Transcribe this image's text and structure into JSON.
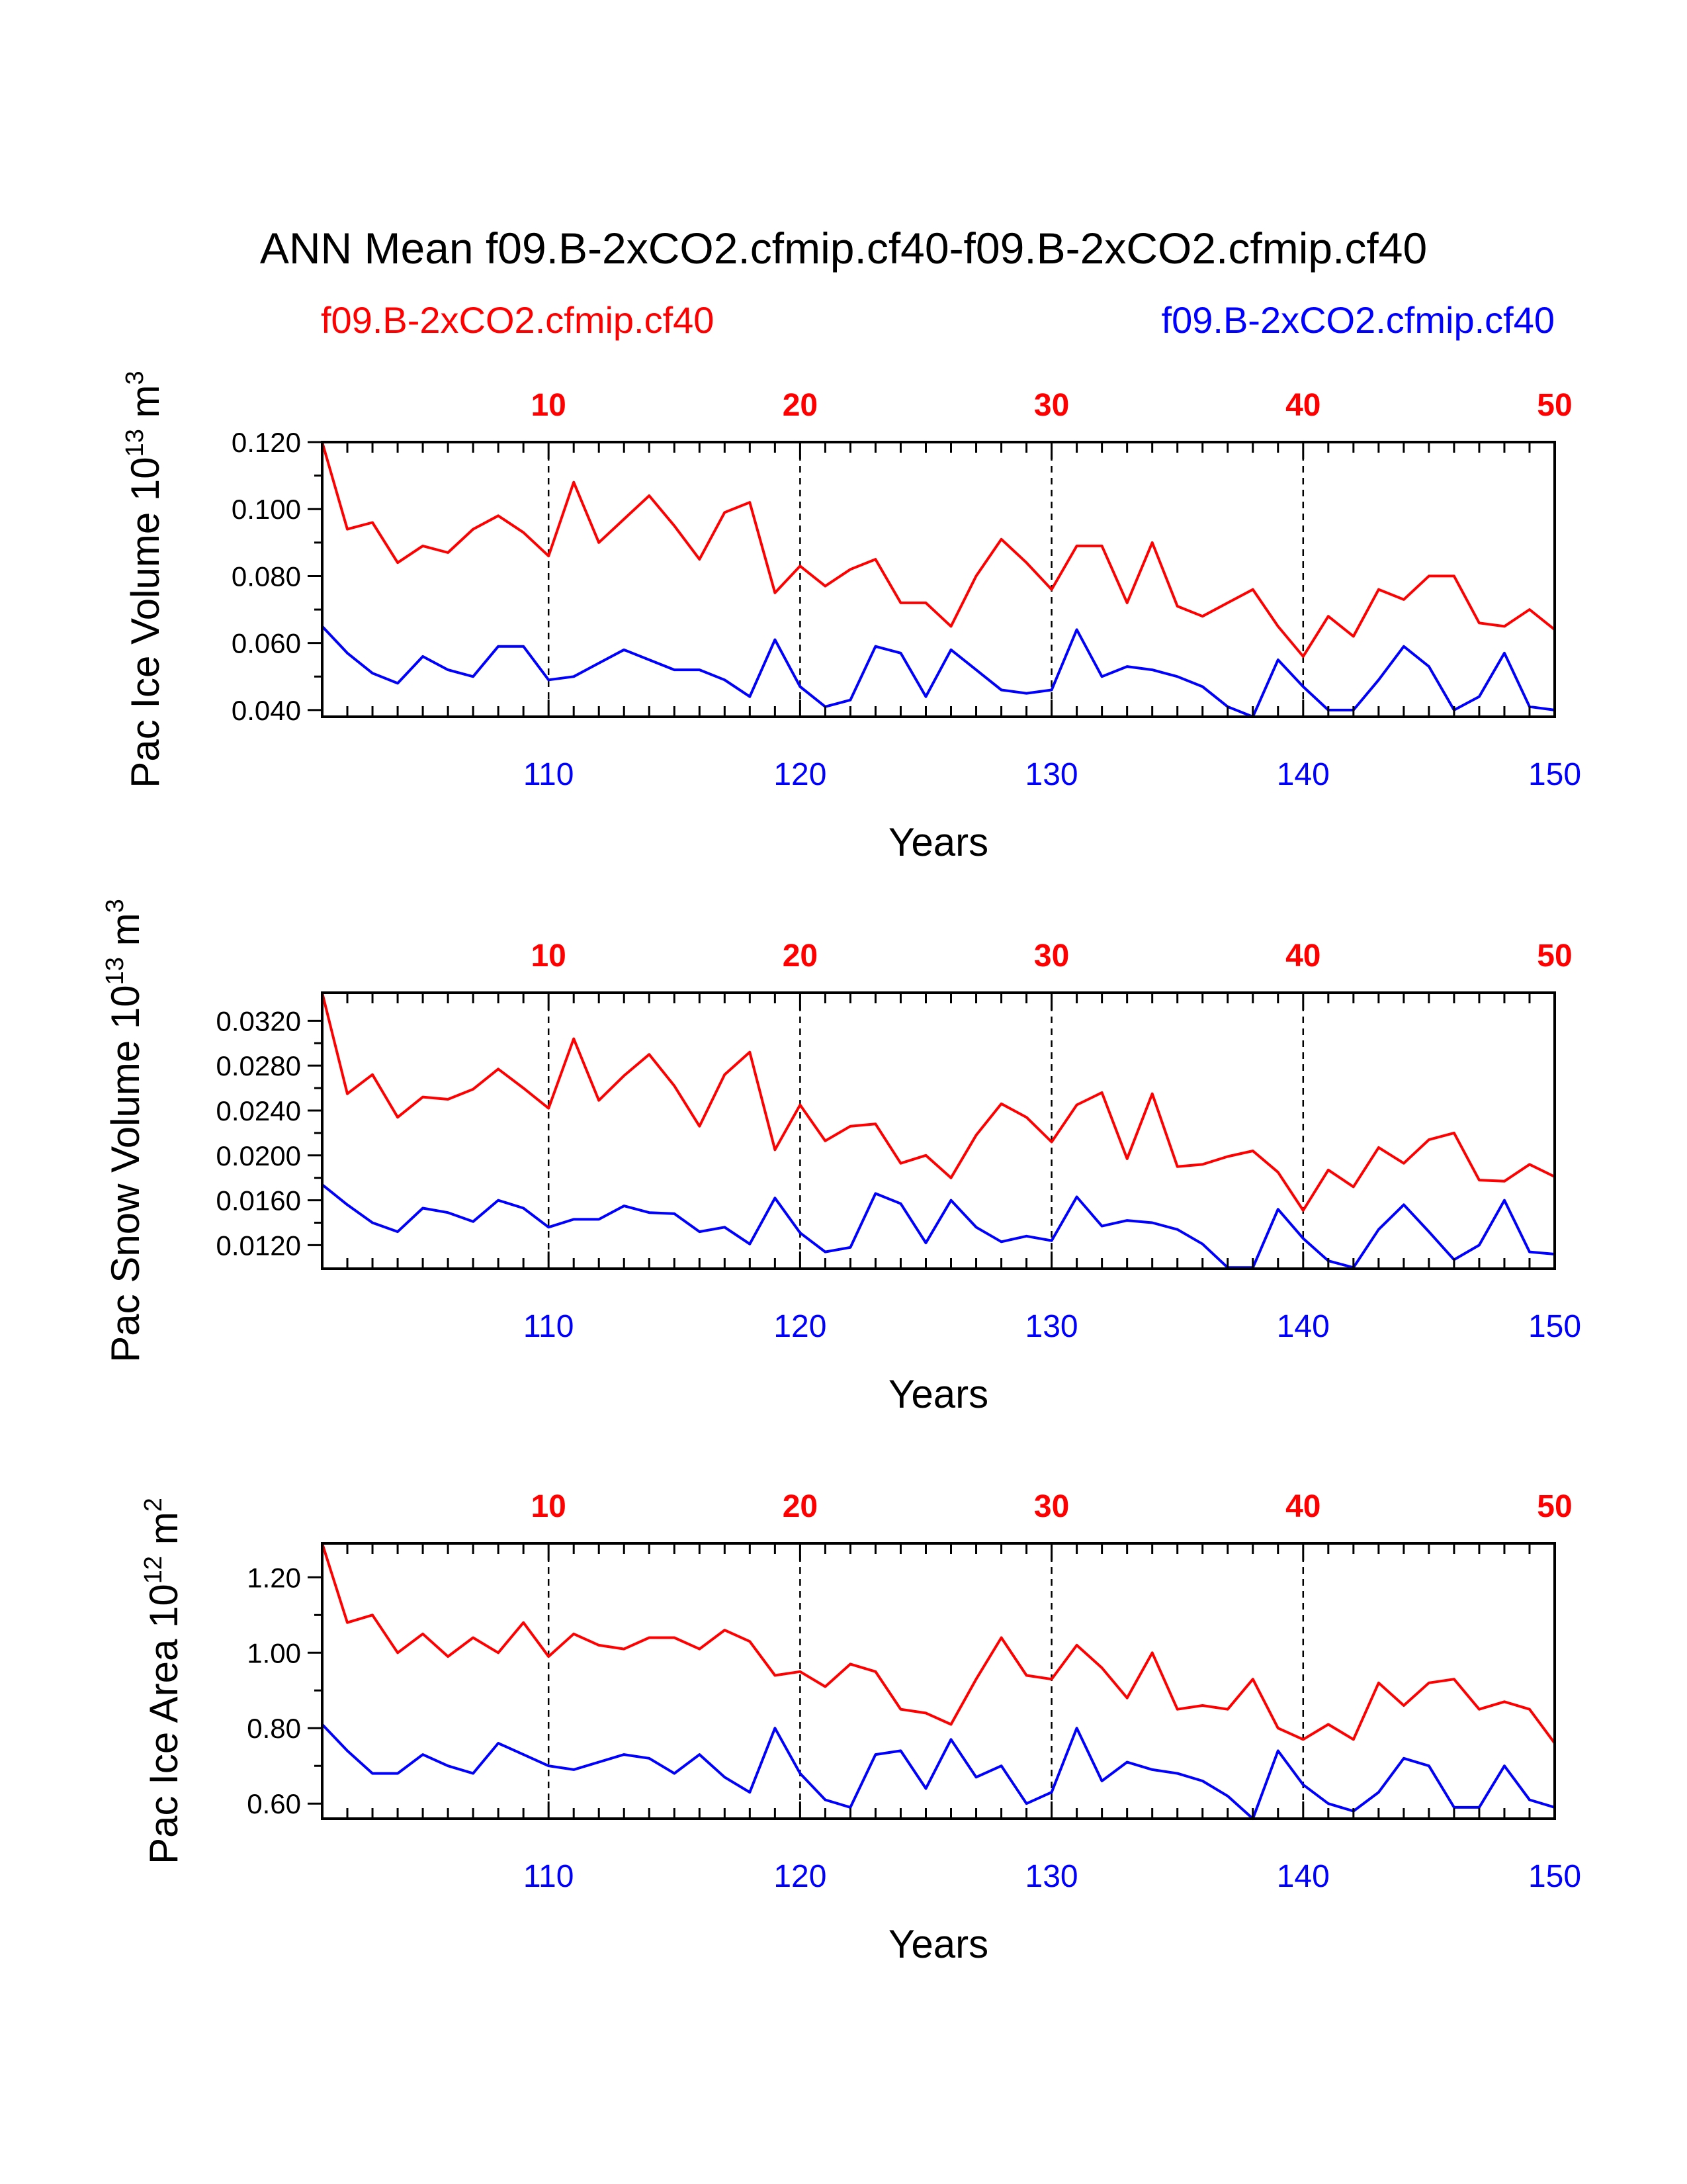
{
  "figure": {
    "title": "ANN Mean f09.B-2xCO2.cfmip.cf40-f09.B-2xCO2.cfmip.cf40",
    "legend": {
      "case1": "f09.B-2xCO2.cfmip.cf40",
      "case2": "f09.B-2xCO2.cfmip.cf40"
    },
    "colors": {
      "case1": "#ff0000",
      "case2": "#0000ff",
      "axis": "#000000"
    }
  },
  "chart_data": [
    {
      "type": "line",
      "ylabel_main": "Pac Ice Volume 10",
      "ylabel_exp": "13",
      "ylabel_unit": " m",
      "ylabel_unit_exp": "3",
      "xlabel": "Years",
      "ylim": [
        0.038,
        0.12
      ],
      "yticks": [
        "0.040",
        "0.060",
        "0.080",
        "0.100",
        "0.120"
      ],
      "ytick_values": [
        0.04,
        0.06,
        0.08,
        0.1,
        0.12
      ],
      "top_ticks": [
        "10",
        "20",
        "30",
        "40",
        "50"
      ],
      "bottom_ticks": [
        "110",
        "120",
        "130",
        "140",
        "150"
      ],
      "series": [
        {
          "name": "f09.B-2xCO2.cfmip.cf40",
          "years": [
            1,
            50
          ],
          "values": [
            0.12,
            0.094,
            0.096,
            0.084,
            0.089,
            0.087,
            0.094,
            0.098,
            0.093,
            0.086,
            0.108,
            0.09,
            0.097,
            0.104,
            0.095,
            0.085,
            0.099,
            0.102,
            0.075,
            0.083,
            0.077,
            0.082,
            0.085,
            0.072,
            0.072,
            0.065,
            0.08,
            0.091,
            0.084,
            0.076,
            0.089,
            0.089,
            0.072,
            0.09,
            0.071,
            0.068,
            0.072,
            0.076,
            0.065,
            0.056,
            0.068,
            0.062,
            0.076,
            0.073,
            0.08,
            0.08,
            0.066,
            0.065,
            0.07,
            0.064
          ]
        },
        {
          "name": "f09.B-2xCO2.cfmip.cf40",
          "years": [
            101,
            150
          ],
          "values": [
            0.065,
            0.057,
            0.051,
            0.048,
            0.056,
            0.052,
            0.05,
            0.059,
            0.059,
            0.049,
            0.05,
            0.054,
            0.058,
            0.055,
            0.052,
            0.052,
            0.049,
            0.044,
            0.061,
            0.047,
            0.041,
            0.043,
            0.059,
            0.057,
            0.044,
            0.058,
            0.052,
            0.046,
            0.045,
            0.046,
            0.064,
            0.05,
            0.053,
            0.052,
            0.05,
            0.047,
            0.041,
            0.038,
            0.055,
            0.047,
            0.04,
            0.04,
            0.049,
            0.059,
            0.053,
            0.04,
            0.044,
            0.057,
            0.041,
            0.04
          ]
        }
      ]
    },
    {
      "type": "line",
      "ylabel_main": "Pac Snow Volume 10",
      "ylabel_exp": "13",
      "ylabel_unit": " m",
      "ylabel_unit_exp": "3",
      "xlabel": "Years",
      "ylim": [
        0.0099,
        0.0345
      ],
      "yticks": [
        "0.0120",
        "0.0160",
        "0.0200",
        "0.0240",
        "0.0280",
        "0.0320"
      ],
      "ytick_values": [
        0.012,
        0.016,
        0.02,
        0.024,
        0.028,
        0.032
      ],
      "top_ticks": [
        "10",
        "20",
        "30",
        "40",
        "50"
      ],
      "bottom_ticks": [
        "110",
        "120",
        "130",
        "140",
        "150"
      ],
      "series": [
        {
          "name": "f09.B-2xCO2.cfmip.cf40",
          "years": [
            1,
            50
          ],
          "values": [
            0.0345,
            0.0255,
            0.0272,
            0.0234,
            0.0252,
            0.025,
            0.0259,
            0.0277,
            0.026,
            0.0242,
            0.0304,
            0.0249,
            0.0271,
            0.029,
            0.0262,
            0.0226,
            0.0272,
            0.0292,
            0.0205,
            0.0245,
            0.0213,
            0.0226,
            0.0228,
            0.0193,
            0.02,
            0.018,
            0.0218,
            0.0246,
            0.0234,
            0.0212,
            0.0245,
            0.0256,
            0.0197,
            0.0255,
            0.019,
            0.0192,
            0.0199,
            0.0204,
            0.0185,
            0.0151,
            0.0187,
            0.0172,
            0.0207,
            0.0193,
            0.0214,
            0.022,
            0.0178,
            0.0177,
            0.0192,
            0.0181
          ]
        },
        {
          "name": "f09.B-2xCO2.cfmip.cf40",
          "years": [
            101,
            150
          ],
          "values": [
            0.0174,
            0.0156,
            0.014,
            0.0132,
            0.0153,
            0.0149,
            0.0141,
            0.016,
            0.0153,
            0.0136,
            0.0143,
            0.0143,
            0.0155,
            0.0149,
            0.0148,
            0.0132,
            0.0136,
            0.0121,
            0.0162,
            0.0131,
            0.0114,
            0.0118,
            0.0166,
            0.0157,
            0.0122,
            0.016,
            0.0136,
            0.0123,
            0.0128,
            0.0124,
            0.0163,
            0.0137,
            0.0142,
            0.014,
            0.0134,
            0.0121,
            0.01,
            0.01,
            0.0152,
            0.0126,
            0.0106,
            0.01,
            0.0134,
            0.0156,
            0.0132,
            0.0107,
            0.012,
            0.016,
            0.0114,
            0.0112
          ]
        }
      ]
    },
    {
      "type": "line",
      "ylabel_main": "Pac Ice Area 10",
      "ylabel_exp": "12",
      "ylabel_unit": " m",
      "ylabel_unit_exp": "2",
      "xlabel": "Years",
      "ylim": [
        0.56,
        1.29
      ],
      "yticks": [
        "0.60",
        "0.80",
        "1.00",
        "1.20"
      ],
      "ytick_values": [
        0.6,
        0.8,
        1.0,
        1.2
      ],
      "top_ticks": [
        "10",
        "20",
        "30",
        "40",
        "50"
      ],
      "bottom_ticks": [
        "110",
        "120",
        "130",
        "140",
        "150"
      ],
      "series": [
        {
          "name": "f09.B-2xCO2.cfmip.cf40",
          "years": [
            1,
            50
          ],
          "values": [
            1.29,
            1.08,
            1.1,
            1.0,
            1.05,
            0.99,
            1.04,
            1.0,
            1.08,
            0.99,
            1.05,
            1.02,
            1.01,
            1.04,
            1.04,
            1.01,
            1.06,
            1.03,
            0.94,
            0.95,
            0.91,
            0.97,
            0.95,
            0.85,
            0.84,
            0.81,
            0.93,
            1.04,
            0.94,
            0.93,
            1.02,
            0.96,
            0.88,
            1.0,
            0.85,
            0.86,
            0.85,
            0.93,
            0.8,
            0.77,
            0.81,
            0.77,
            0.92,
            0.86,
            0.92,
            0.93,
            0.85,
            0.87,
            0.85,
            0.76
          ]
        },
        {
          "name": "f09.B-2xCO2.cfmip.cf40",
          "years": [
            101,
            150
          ],
          "values": [
            0.81,
            0.74,
            0.68,
            0.68,
            0.73,
            0.7,
            0.68,
            0.76,
            0.73,
            0.7,
            0.69,
            0.71,
            0.73,
            0.72,
            0.68,
            0.73,
            0.67,
            0.63,
            0.8,
            0.68,
            0.61,
            0.59,
            0.73,
            0.74,
            0.64,
            0.77,
            0.67,
            0.7,
            0.6,
            0.63,
            0.8,
            0.66,
            0.71,
            0.69,
            0.68,
            0.66,
            0.62,
            0.56,
            0.74,
            0.65,
            0.6,
            0.58,
            0.63,
            0.72,
            0.7,
            0.59,
            0.59,
            0.7,
            0.61,
            0.59
          ]
        }
      ]
    }
  ]
}
